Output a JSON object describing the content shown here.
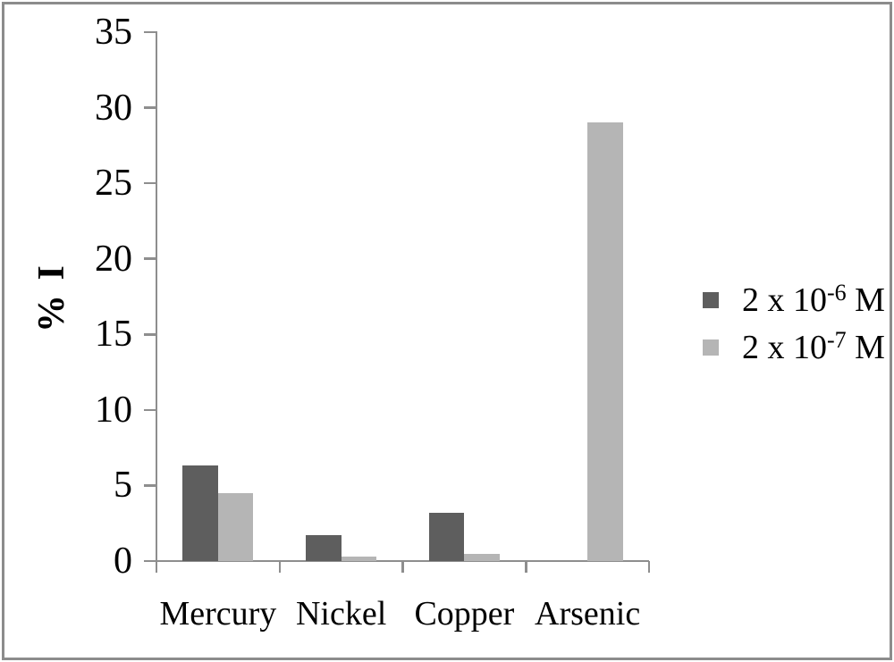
{
  "figure": {
    "background": "#ffffff",
    "frame_border_color": "#8c8c8c",
    "axis_color": "#8e8e8e",
    "text_color": "#000000"
  },
  "chart_data": {
    "type": "bar",
    "title": "",
    "xlabel": "",
    "ylabel": "% I",
    "categories": [
      "Mercury",
      "Nickel",
      "Copper",
      "Arsenic"
    ],
    "series": [
      {
        "name": "2 x 10⁻⁶ M",
        "color": "#5e5e5e",
        "values": [
          6.3,
          1.7,
          3.2,
          0
        ]
      },
      {
        "name": "2 x 10⁻⁷ M",
        "color": "#b5b5b5",
        "values": [
          4.5,
          0.3,
          0.45,
          29
        ]
      }
    ],
    "ylim": [
      0,
      35
    ],
    "yticks": [
      0,
      5,
      10,
      15,
      20,
      25,
      30,
      35
    ],
    "ytick_labels": [
      "0",
      "5",
      "10",
      "15",
      "20",
      "25",
      "30",
      "35"
    ],
    "grid": false,
    "legend_position": "center-right",
    "bar_style": "grouped-touching"
  },
  "legend": {
    "items": [
      {
        "base": "2 x 10",
        "sup": "-6",
        "suffix": " M",
        "color": "#5e5e5e"
      },
      {
        "base": "2 x 10",
        "sup": "-7",
        "suffix": " M",
        "color": "#b5b5b5"
      }
    ]
  }
}
